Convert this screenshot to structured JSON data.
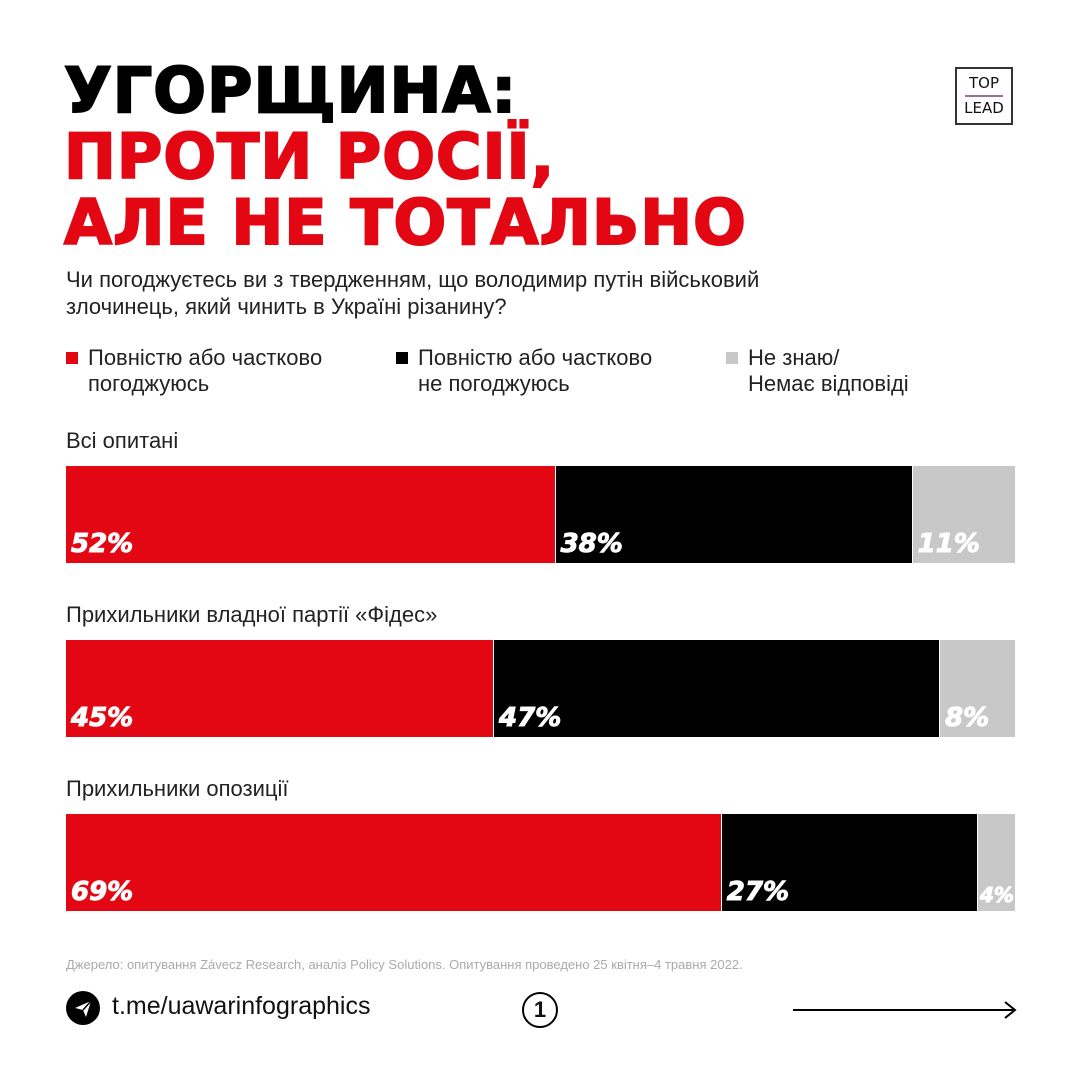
{
  "header": {
    "title_lines": [
      "УГОРЩИНА:",
      "ПРОТИ РОСІЇ,",
      "АЛЕ НЕ ТОТАЛЬНО"
    ],
    "logo_top": "TOP",
    "logo_bottom": "LEAD"
  },
  "chart_data": {
    "type": "bar",
    "subtype": "stacked-horizontal-100",
    "title": "Чи погоджуєтесь ви з твердженням, що володимир путін військовий злочинець, який чинить в Україні різанину?",
    "legend": [
      "Повністю або частково погоджуюсь",
      "Повністю або частково не погоджуюсь",
      "Не знаю/ Немає відповіді"
    ],
    "legend_placement": "top",
    "colors": [
      "#e30613",
      "#000000",
      "#c8c8c8"
    ],
    "groups": [
      {
        "label": "Всі опитані",
        "values": [
          52,
          38,
          11
        ],
        "labels": [
          "52%",
          "38%",
          "11%"
        ]
      },
      {
        "label": "Прихильники владної партії «Фідес»",
        "values": [
          45,
          47,
          8
        ],
        "labels": [
          "45%",
          "47%",
          "8%"
        ]
      },
      {
        "label": "Прихильники опозиції",
        "values": [
          69,
          27,
          4
        ],
        "labels": [
          "69%",
          "27%",
          "4%"
        ]
      }
    ]
  },
  "legend_lines": [
    [
      "Повністю або частково",
      "погоджуюсь"
    ],
    [
      "Повністю або частково",
      "не погоджуюсь"
    ],
    [
      "Не знаю/",
      "Немає відповіді"
    ]
  ],
  "footer": {
    "source": "Джерело: опитування Závecz Research, аналіз Policy Solutions. Опитування проведено 25 квітня–4 травня 2022.",
    "telegram": "t.me/uawarinfographics",
    "page_number": "1"
  }
}
